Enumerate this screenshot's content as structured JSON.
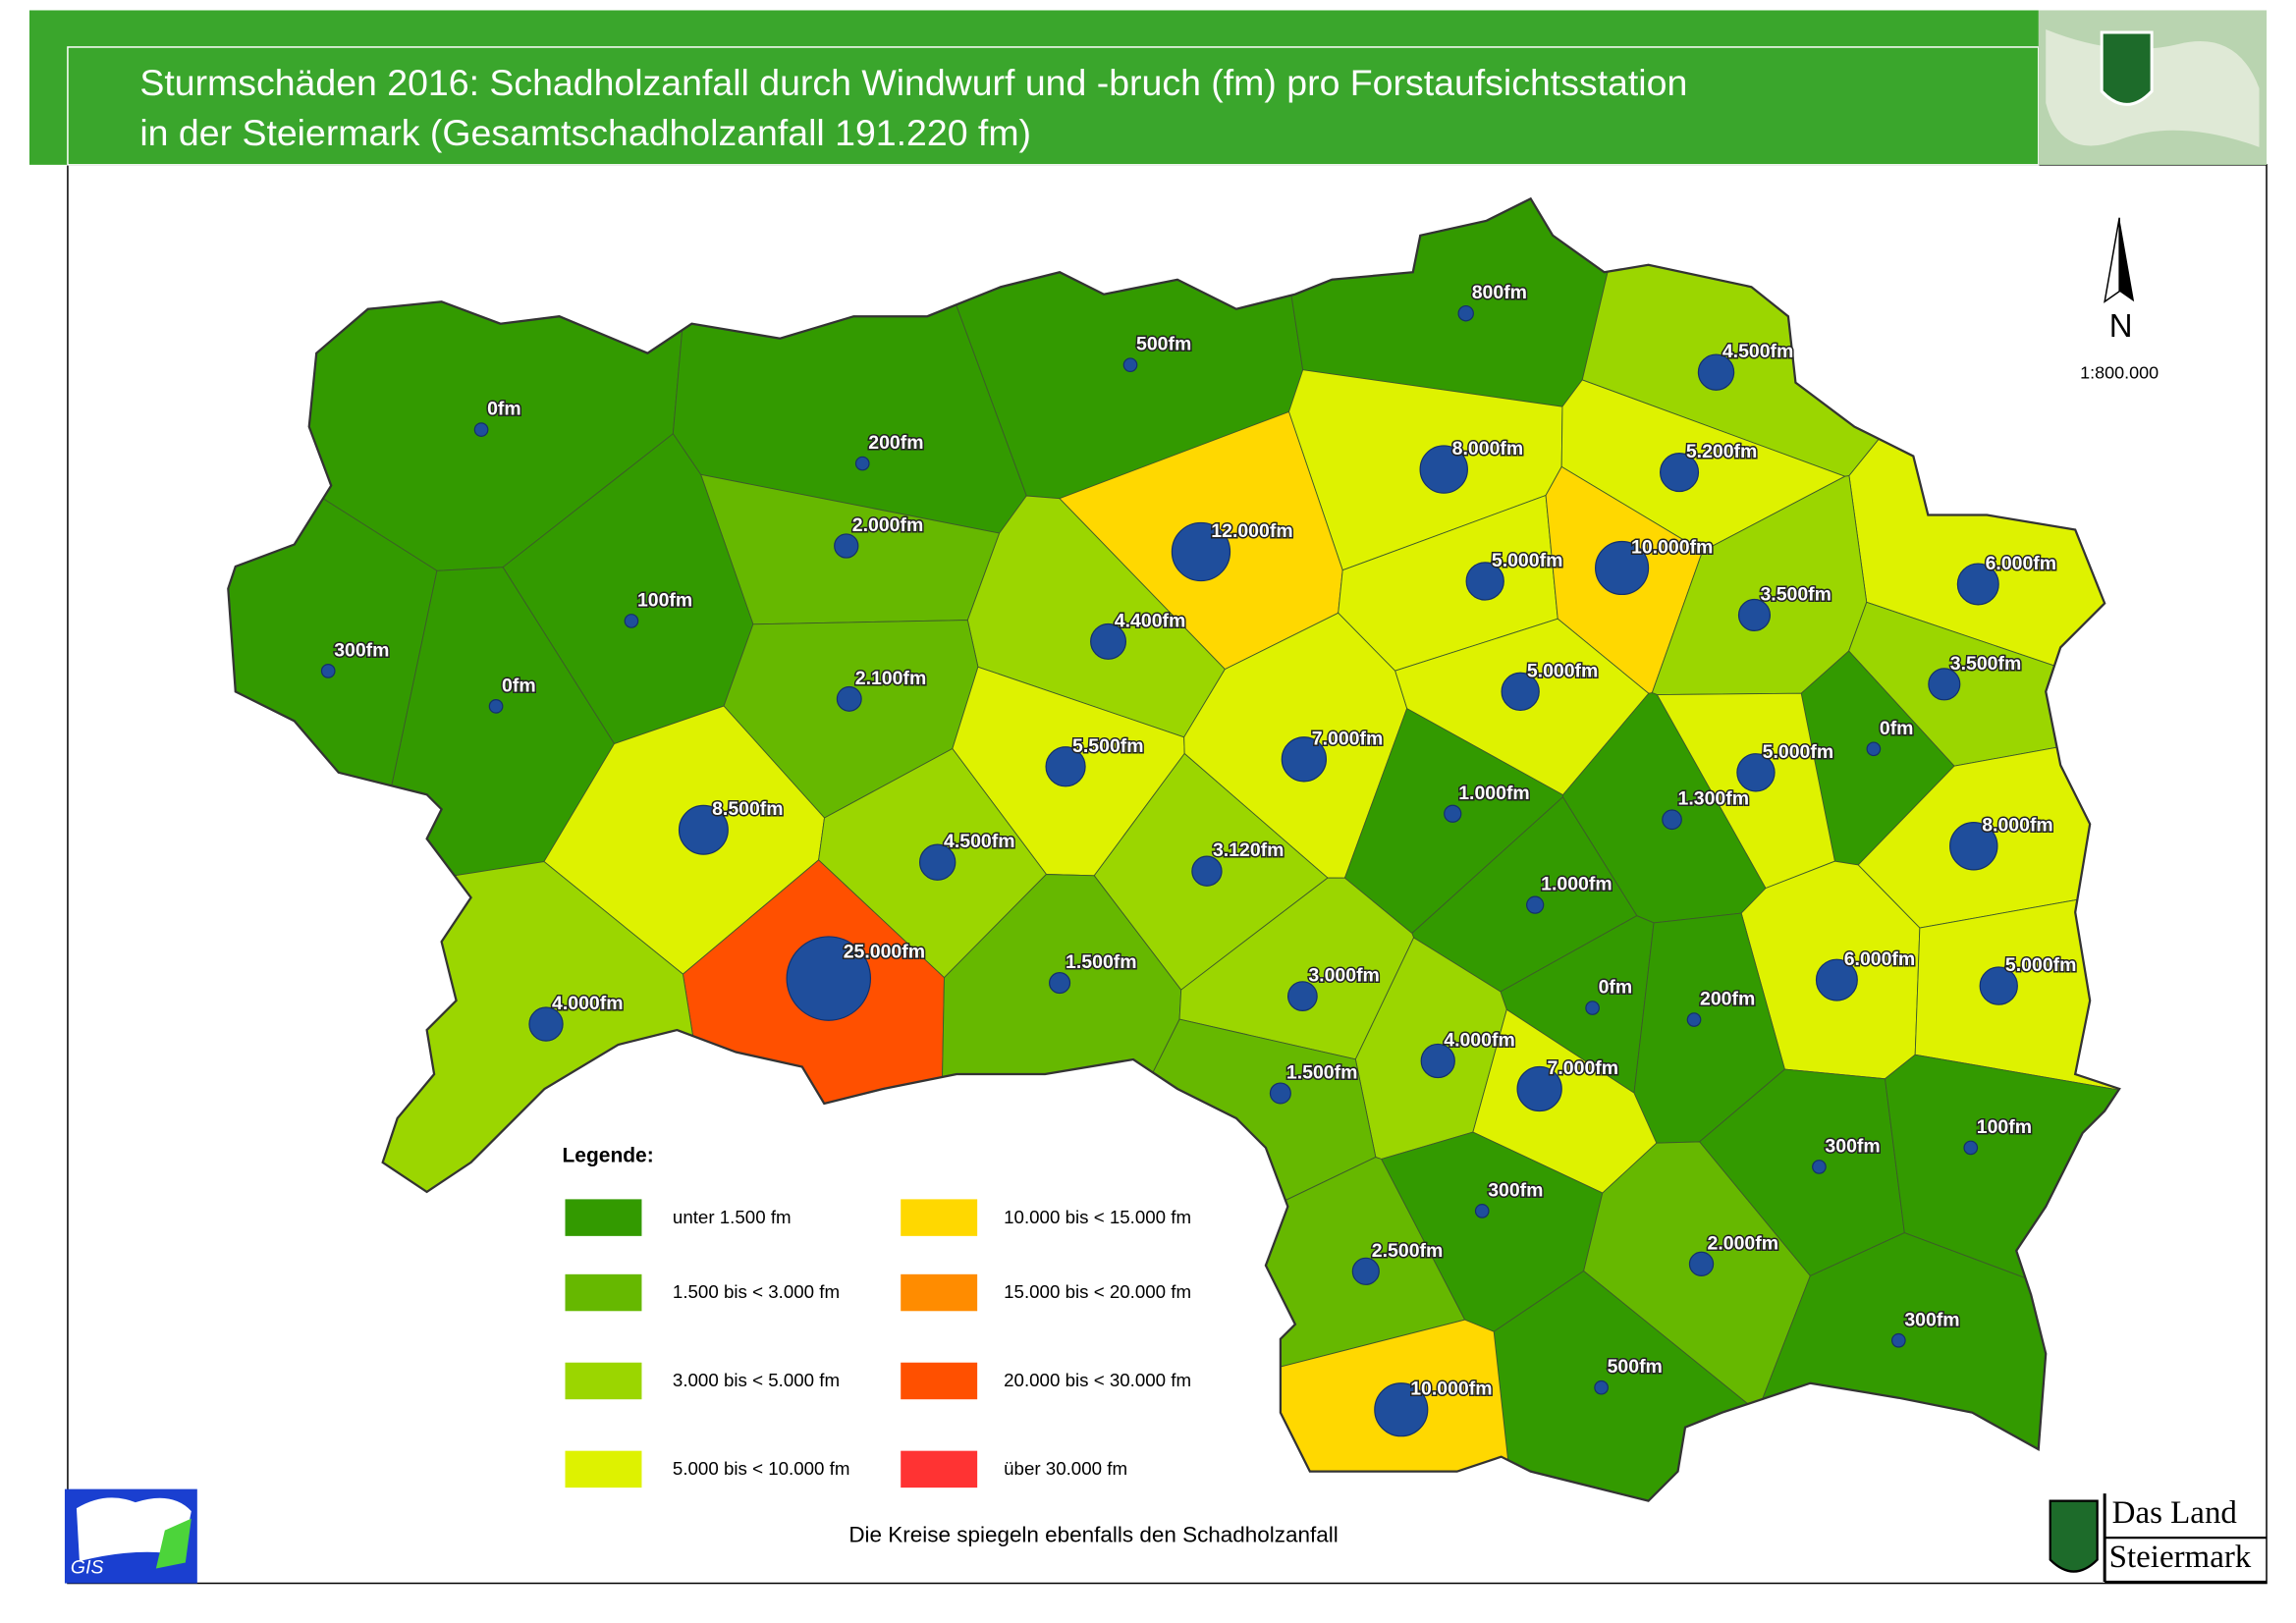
{
  "header": {
    "title_lines": [
      "Sturmschäden 2016: Schadholzanfall durch Windwurf und -bruch (fm) pro Forstaufsichtsstation",
      "in der Steiermark (Gesamtschadholzanfall 191.220 fm)"
    ]
  },
  "map": {
    "type": "proportional-symbol-map",
    "stations": [
      {
        "value": 0,
        "label": "0fm"
      },
      {
        "value": 500,
        "label": "500fm"
      },
      {
        "value": 800,
        "label": "800fm"
      },
      {
        "value": 4500,
        "label": "4.500fm"
      },
      {
        "value": 200,
        "label": "200fm"
      },
      {
        "value": 2000,
        "label": "2.000fm"
      },
      {
        "value": 100,
        "label": "100fm"
      },
      {
        "value": 300,
        "label": "300fm"
      },
      {
        "value": 0,
        "label": "0fm"
      },
      {
        "value": 8000,
        "label": "8.000fm"
      },
      {
        "value": 5200,
        "label": "5.200fm"
      },
      {
        "value": 12000,
        "label": "12.000fm"
      },
      {
        "value": 5000,
        "label": "5.000fm"
      },
      {
        "value": 10000,
        "label": "10.000fm"
      },
      {
        "value": 6000,
        "label": "6.000fm"
      },
      {
        "value": 3500,
        "label": "3.500fm"
      },
      {
        "value": 4400,
        "label": "4.400fm"
      },
      {
        "value": 2100,
        "label": "2.100fm"
      },
      {
        "value": 5000,
        "label": "5.000fm"
      },
      {
        "value": 3500,
        "label": "3.500fm"
      },
      {
        "value": 0,
        "label": "0fm"
      },
      {
        "value": 5500,
        "label": "5.500fm"
      },
      {
        "value": 7000,
        "label": "7.000fm"
      },
      {
        "value": 5000,
        "label": "5.000fm"
      },
      {
        "value": 1000,
        "label": "1.000fm"
      },
      {
        "value": 1300,
        "label": "1.300fm"
      },
      {
        "value": 8500,
        "label": "8.500fm"
      },
      {
        "value": 8000,
        "label": "8.000fm"
      },
      {
        "value": 4500,
        "label": "4.500fm"
      },
      {
        "value": 3120,
        "label": "3.120fm"
      },
      {
        "value": 1000,
        "label": "1.000fm"
      },
      {
        "value": 25000,
        "label": "25.000fm"
      },
      {
        "value": 1500,
        "label": "1.500fm"
      },
      {
        "value": 6000,
        "label": "6.000fm"
      },
      {
        "value": 5000,
        "label": "5.000fm"
      },
      {
        "value": 0,
        "label": "0fm"
      },
      {
        "value": 3000,
        "label": "3.000fm"
      },
      {
        "value": 4000,
        "label": "4.000fm"
      },
      {
        "value": 200,
        "label": "200fm"
      },
      {
        "value": 4000,
        "label": "4.000fm"
      },
      {
        "value": 7000,
        "label": "7.000fm"
      },
      {
        "value": 1500,
        "label": "1.500fm"
      },
      {
        "value": 300,
        "label": "300fm"
      },
      {
        "value": 100,
        "label": "100fm"
      },
      {
        "value": 300,
        "label": "300fm"
      },
      {
        "value": 2500,
        "label": "2.500fm"
      },
      {
        "value": 2000,
        "label": "2.000fm"
      },
      {
        "value": 300,
        "label": "300fm"
      },
      {
        "value": 500,
        "label": "500fm"
      },
      {
        "value": 10000,
        "label": "10.000fm"
      }
    ],
    "symbol_color": "#1f4e9c",
    "legend": {
      "title": "Legende:",
      "classes": [
        {
          "label": "unter  1.500 fm",
          "color": "#339a00",
          "max": 1500
        },
        {
          "label": "1.500 bis <  3.000 fm",
          "color": "#66b800",
          "min": 1500,
          "max": 3000
        },
        {
          "label": "3.000 bis <  5.000 fm",
          "color": "#9bd600",
          "min": 3000,
          "max": 5000
        },
        {
          "label": "5.000 bis < 10.000 fm",
          "color": "#def200",
          "min": 5000,
          "max": 10000
        },
        {
          "label": "10.000 bis < 15.000 fm",
          "color": "#ffd800",
          "min": 10000,
          "max": 15000
        },
        {
          "label": "15.000 bis < 20.000 fm",
          "color": "#ff8c00",
          "min": 15000,
          "max": 20000
        },
        {
          "label": "20.000 bis < 30.000 fm",
          "color": "#ff5000",
          "min": 20000,
          "max": 30000
        },
        {
          "label": "über 30.000 fm",
          "color": "#ff3333",
          "min": 30000
        }
      ]
    },
    "north": "N",
    "scale": "1:800.000",
    "note": "Die Kreise spiegeln ebenfalls den Schadholzanfall"
  },
  "logos": {
    "gis": "GIS",
    "land_line1": "Das Land",
    "land_line2": "Steiermark"
  }
}
